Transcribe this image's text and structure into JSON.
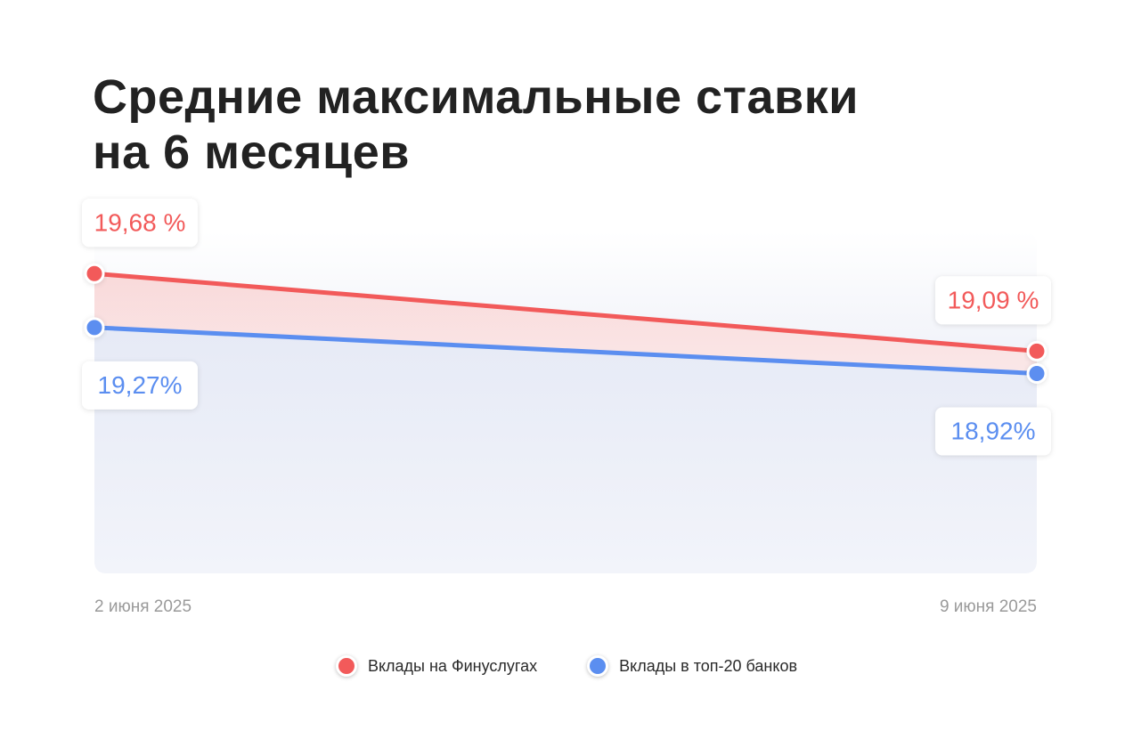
{
  "title_lines": [
    "Средние максимальные ставки",
    "на 6 месяцев"
  ],
  "chart_data": {
    "type": "line",
    "title": "Средние максимальные ставки на 6 месяцев",
    "x": [
      "2 июня 2025",
      "9 июня 2025"
    ],
    "ylim": [
      17.4,
      20.0
    ],
    "grid": false,
    "legend_placement": "bottom-center",
    "series": [
      {
        "name": "Вклады на Финуслугах",
        "values": [
          19.68,
          19.09
        ],
        "labels": [
          "19,68 %",
          "19,09 %"
        ],
        "color": "#f25a5a"
      },
      {
        "name": "Вклады в топ-20 банков",
        "values": [
          19.27,
          18.92
        ],
        "labels": [
          "19,27%",
          "18,92%"
        ],
        "color": "#5b8ef0"
      }
    ]
  }
}
